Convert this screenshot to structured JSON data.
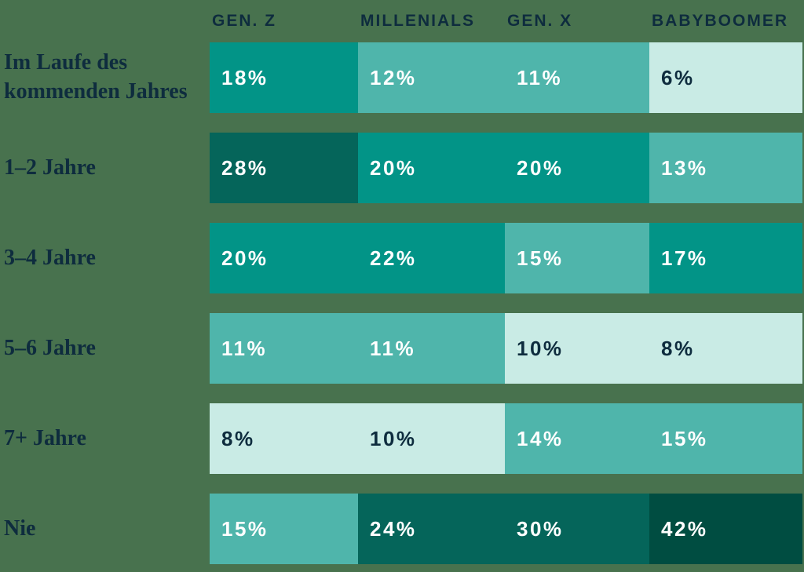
{
  "palette": {
    "background": "#48724E",
    "text_dark": "#0E2C3E",
    "text_light": "#FFFFFF",
    "darkest": "#004D41",
    "dark": "#05655A",
    "medium": "#029487",
    "light": "#4FB5AB",
    "lightest": "#C9EBE5"
  },
  "chart": {
    "columns": [
      "GEN. Z",
      "MILLENIALS",
      "GEN. X",
      "BABYBOOMER"
    ],
    "rows": [
      {
        "label": "Im Laufe des kommenden Jahres",
        "cells": [
          {
            "text": "18%",
            "tier": "medium"
          },
          {
            "text": "12%",
            "tier": "light"
          },
          {
            "text": "11%",
            "tier": "light"
          },
          {
            "text": "6%",
            "tier": "lightest"
          }
        ]
      },
      {
        "label": "1–2 Jahre",
        "cells": [
          {
            "text": "28%",
            "tier": "dark"
          },
          {
            "text": "20%",
            "tier": "medium"
          },
          {
            "text": "20%",
            "tier": "medium"
          },
          {
            "text": "13%",
            "tier": "light"
          }
        ]
      },
      {
        "label": "3–4 Jahre",
        "cells": [
          {
            "text": "20%",
            "tier": "medium"
          },
          {
            "text": "22%",
            "tier": "medium"
          },
          {
            "text": "15%",
            "tier": "light"
          },
          {
            "text": "17%",
            "tier": "medium"
          }
        ]
      },
      {
        "label": "5–6 Jahre",
        "cells": [
          {
            "text": "11%",
            "tier": "light"
          },
          {
            "text": "11%",
            "tier": "light"
          },
          {
            "text": "10%",
            "tier": "lightest"
          },
          {
            "text": "8%",
            "tier": "lightest"
          }
        ]
      },
      {
        "label": "7+ Jahre",
        "cells": [
          {
            "text": "8%",
            "tier": "lightest"
          },
          {
            "text": "10%",
            "tier": "lightest"
          },
          {
            "text": "14%",
            "tier": "light"
          },
          {
            "text": "15%",
            "tier": "light"
          }
        ]
      },
      {
        "label": "Nie",
        "cells": [
          {
            "text": "15%",
            "tier": "light"
          },
          {
            "text": "24%",
            "tier": "dark"
          },
          {
            "text": "30%",
            "tier": "dark"
          },
          {
            "text": "42%",
            "tier": "darkest"
          }
        ]
      }
    ]
  },
  "chart_data": {
    "type": "heatmap",
    "title": "",
    "columns": [
      "GEN. Z",
      "MILLENIALS",
      "GEN. X",
      "BABYBOOMER"
    ],
    "categories": [
      "Im Laufe des kommenden Jahres",
      "1–2 Jahre",
      "3–4 Jahre",
      "5–6 Jahre",
      "7+ Jahre",
      "Nie"
    ],
    "unit": "%",
    "values": [
      [
        18,
        12,
        11,
        6
      ],
      [
        28,
        20,
        20,
        13
      ],
      [
        20,
        22,
        15,
        17
      ],
      [
        11,
        11,
        10,
        8
      ],
      [
        8,
        10,
        14,
        15
      ],
      [
        15,
        24,
        30,
        42
      ]
    ],
    "legend": "none",
    "grid": false,
    "color_encoding": "darker cell = higher percentage"
  }
}
